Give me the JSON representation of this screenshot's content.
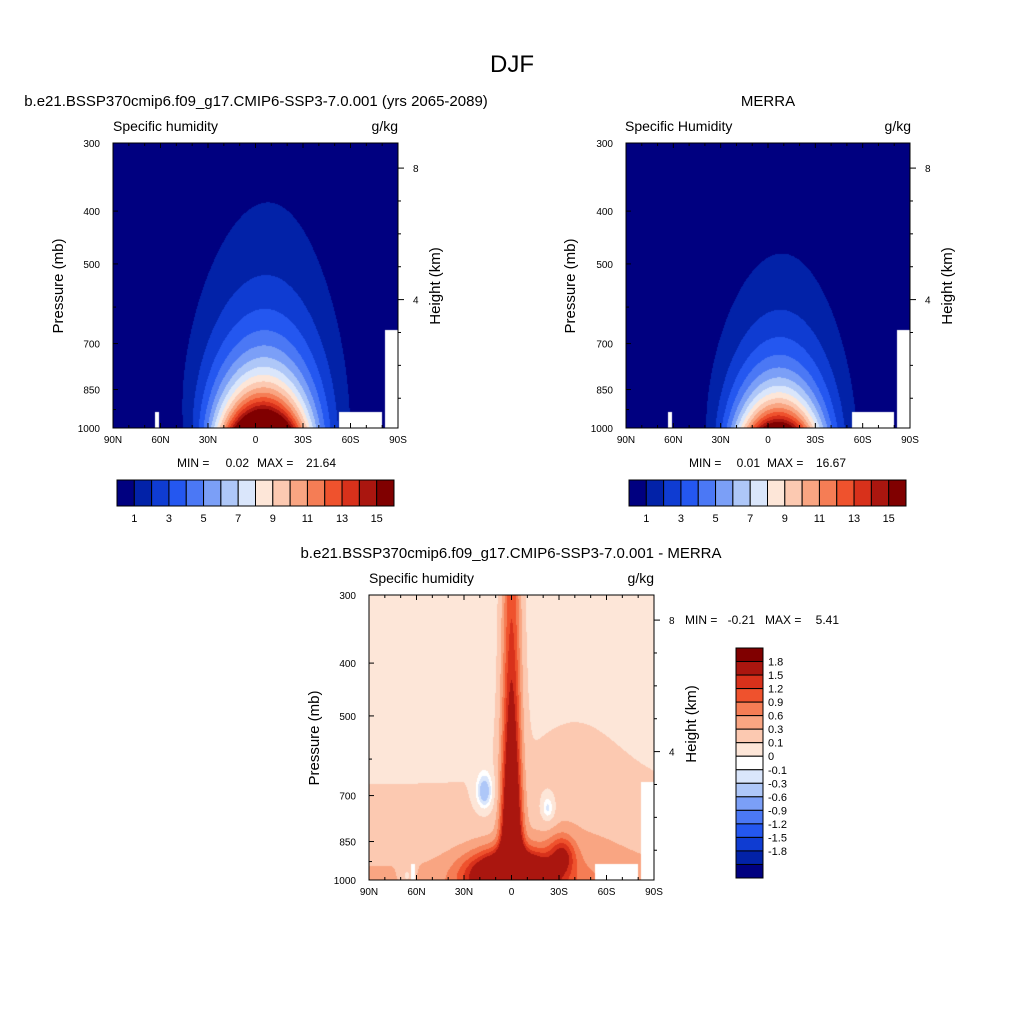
{
  "page_title": "DJF",
  "colors": {
    "seq": [
      "#000080",
      "#0222a8",
      "#0f3cd2",
      "#2457f0",
      "#4b78f5",
      "#7b9ff7",
      "#aec7f8",
      "#dae6fb",
      "#fde6d8",
      "#fcc9b1",
      "#f9a582",
      "#f57d55",
      "#ef522d",
      "#d8311b",
      "#aa160f",
      "#800000"
    ],
    "div": [
      "#000080",
      "#0222a8",
      "#0f3cd2",
      "#2457f0",
      "#4b78f5",
      "#7b9ff7",
      "#aec7f8",
      "#dae6fb",
      "#ffffff",
      "#fde6d8",
      "#fcc9b1",
      "#f9a582",
      "#f57d55",
      "#ef522d",
      "#d8311b",
      "#aa160f",
      "#800000"
    ]
  },
  "chart_data": [
    {
      "type": "contour",
      "id": "model",
      "title": "b.e21.BSSP370cmip6.f09_g17.CMIP6-SSP3-7.0.001 (yrs 2065-2089)",
      "left_string": "Specific humidity",
      "right_string": "g/kg",
      "ylabel": "Pressure (mb)",
      "y2label": "Height (km)",
      "x_ticks": [
        "90N",
        "60N",
        "30N",
        "0",
        "30S",
        "60S",
        "90S"
      ],
      "y_ticks": [
        "300",
        "400",
        "500",
        "700",
        "850",
        "1000"
      ],
      "y2_ticks": [
        "8",
        "4"
      ],
      "xlim": [
        90,
        -90
      ],
      "ylim": [
        1000,
        300
      ],
      "min_text": "MIN =",
      "min_value": "0.02",
      "max_text": "MAX =",
      "max_value": "21.64",
      "levels": [
        1,
        2,
        3,
        4,
        5,
        6,
        7,
        8,
        9,
        10,
        11,
        12,
        13,
        14,
        15
      ],
      "colorbar_labels": [
        "1",
        "3",
        "5",
        "7",
        "9",
        "11",
        "13",
        "15"
      ],
      "field_min": 0.02,
      "field_max": 21.64
    },
    {
      "type": "contour",
      "id": "obs",
      "title": "MERRA",
      "left_string": "Specific Humidity",
      "right_string": "g/kg",
      "ylabel": "Pressure (mb)",
      "y2label": "Height (km)",
      "x_ticks": [
        "90N",
        "60N",
        "30N",
        "0",
        "30S",
        "60S",
        "90S"
      ],
      "y_ticks": [
        "300",
        "400",
        "500",
        "700",
        "850",
        "1000"
      ],
      "y2_ticks": [
        "8",
        "4"
      ],
      "xlim": [
        90,
        -90
      ],
      "ylim": [
        1000,
        300
      ],
      "min_text": "MIN =",
      "min_value": "0.01",
      "max_text": "MAX =",
      "max_value": "16.67",
      "levels": [
        1,
        2,
        3,
        4,
        5,
        6,
        7,
        8,
        9,
        10,
        11,
        12,
        13,
        14,
        15
      ],
      "colorbar_labels": [
        "1",
        "3",
        "5",
        "7",
        "9",
        "11",
        "13",
        "15"
      ],
      "field_min": 0.01,
      "field_max": 16.67
    },
    {
      "type": "contour",
      "id": "diff",
      "title": "b.e21.BSSP370cmip6.f09_g17.CMIP6-SSP3-7.0.001 - MERRA",
      "left_string": "Specific humidity",
      "right_string": "g/kg",
      "ylabel": "Pressure (mb)",
      "y2label": "Height (km)",
      "x_ticks": [
        "90N",
        "60N",
        "30N",
        "0",
        "30S",
        "60S",
        "90S"
      ],
      "y_ticks": [
        "300",
        "400",
        "500",
        "700",
        "850",
        "1000"
      ],
      "y2_ticks": [
        "8",
        "4"
      ],
      "xlim": [
        90,
        -90
      ],
      "ylim": [
        1000,
        300
      ],
      "min_text": "MIN =",
      "min_value": "-0.21",
      "max_text": "MAX =",
      "max_value": "5.41",
      "levels": [
        -1.8,
        -1.5,
        -1.2,
        -0.9,
        -0.6,
        -0.3,
        -0.1,
        0,
        0.1,
        0.3,
        0.6,
        0.9,
        1.2,
        1.5,
        1.8
      ],
      "colorbar_labels": [
        "1.8",
        "1.5",
        "1.2",
        "0.9",
        "0.6",
        "0.3",
        "0.1",
        "0",
        "-0.1",
        "-0.3",
        "-0.6",
        "-0.9",
        "-1.2",
        "-1.5",
        "-1.8"
      ],
      "field_min": -0.21,
      "field_max": 5.41
    }
  ]
}
